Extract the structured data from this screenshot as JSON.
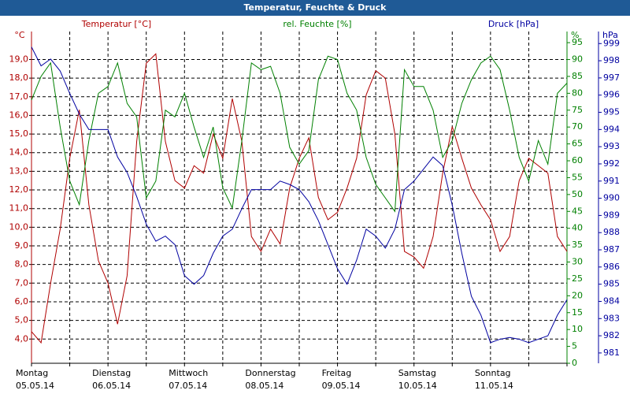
{
  "chart_data": {
    "type": "line",
    "title": "Temperatur, Feuchte & Druck",
    "x": [
      0,
      3,
      6,
      9,
      12,
      15,
      18,
      21,
      24,
      27,
      30,
      33,
      36,
      39,
      42,
      45,
      48,
      51,
      54,
      57,
      60,
      63,
      66,
      69,
      72,
      75,
      78,
      81,
      84,
      87,
      90,
      93,
      96,
      99,
      102,
      105,
      108,
      111,
      114,
      117,
      120,
      123,
      126,
      129,
      132,
      135,
      138,
      141,
      144,
      147,
      150,
      153,
      156,
      159,
      162,
      165,
      168
    ],
    "xlim": [
      0,
      168
    ],
    "xticks": [
      {
        "value": 0,
        "label": "Montag",
        "sublabel": "05.05.14"
      },
      12,
      {
        "value": 24,
        "label": "Dienstag",
        "sublabel": "06.05.14"
      },
      36,
      {
        "value": 48,
        "label": "Mittwoch",
        "sublabel": "07.05.14"
      },
      60,
      {
        "value": 72,
        "label": "Donnerstag",
        "sublabel": "08.05.14"
      },
      84,
      {
        "value": 96,
        "label": "Freitag",
        "sublabel": "09.05.14"
      },
      108,
      {
        "value": 120,
        "label": "Samstag",
        "sublabel": "10.05.14"
      },
      132,
      {
        "value": 144,
        "label": "Sonntag",
        "sublabel": "11.05.14"
      },
      156,
      168
    ],
    "ylabel": "°C",
    "ylim": [
      2.7,
      20.5
    ],
    "yticks": [
      {
        "value": 4,
        "label": "4,0"
      },
      {
        "value": 5,
        "label": "5,0"
      },
      {
        "value": 6,
        "label": "6,0"
      },
      {
        "value": 7,
        "label": "7,0"
      },
      {
        "value": 8,
        "label": "8,0"
      },
      {
        "value": 9,
        "label": "9,0"
      },
      {
        "value": 10,
        "label": "10,0"
      },
      {
        "value": 11,
        "label": "11,0"
      },
      {
        "value": 12,
        "label": "12,0"
      },
      {
        "value": 13,
        "label": "13,0"
      },
      {
        "value": 14,
        "label": "14,0"
      },
      {
        "value": 15,
        "label": "15,0"
      },
      {
        "value": 16,
        "label": "16,0"
      },
      {
        "value": 17,
        "label": "17,0"
      },
      {
        "value": 18,
        "label": "18,0"
      },
      {
        "value": 19,
        "label": "19,0"
      }
    ],
    "y2label": "%",
    "y2lim": [
      0,
      98.3
    ],
    "y2ticks": [
      0,
      5,
      10,
      15,
      20,
      25,
      30,
      35,
      40,
      45,
      50,
      55,
      60,
      65,
      70,
      75,
      80,
      85,
      90,
      95
    ],
    "y3label": "hPa",
    "y3lim": [
      980.4,
      999.7
    ],
    "y3ticks": [
      981,
      982,
      983,
      984,
      985,
      986,
      987,
      988,
      989,
      990,
      991,
      992,
      993,
      994,
      995,
      996,
      997,
      998,
      999
    ],
    "grid": true,
    "series": [
      {
        "name": "Temperatur [°C]",
        "color": "#b00000",
        "axis": "y",
        "values": [
          4.4,
          3.8,
          7.0,
          9.9,
          13.7,
          16.3,
          11.2,
          8.2,
          7.0,
          4.8,
          7.4,
          14.6,
          18.8,
          19.3,
          14.6,
          12.5,
          12.1,
          13.3,
          12.9,
          15.0,
          13.7,
          16.9,
          14.6,
          9.5,
          8.7,
          9.9,
          9.1,
          12.1,
          13.7,
          14.8,
          11.6,
          10.4,
          10.8,
          12.1,
          13.7,
          17.1,
          18.4,
          18.0,
          15.0,
          8.7,
          8.4,
          7.8,
          9.5,
          12.9,
          15.4,
          13.7,
          12.1,
          11.2,
          10.4,
          8.7,
          9.5,
          12.5,
          13.7,
          13.3,
          12.9,
          9.5,
          8.7
        ]
      },
      {
        "name": "rel. Feuchte [%]",
        "color": "#008000",
        "axis": "y2",
        "values": [
          78,
          85,
          89,
          70,
          54,
          47,
          66,
          80,
          82,
          89,
          77,
          73,
          49,
          54,
          75,
          73,
          80,
          70,
          61,
          70,
          52,
          46,
          66,
          89,
          87,
          88,
          80,
          64,
          59,
          63,
          84,
          91,
          90,
          80,
          75,
          61,
          53,
          49,
          45,
          87,
          82,
          82,
          75,
          61,
          66,
          77,
          84,
          89,
          91,
          87,
          75,
          61,
          54,
          66,
          59,
          80,
          83
        ]
      },
      {
        "name": "Druck [hPa]",
        "color": "#0000a0",
        "axis": "y3",
        "values": [
          998.8,
          997.7,
          998.1,
          997.4,
          996.1,
          994.9,
          994.0,
          994.0,
          994.0,
          992.4,
          991.5,
          990.1,
          988.5,
          987.5,
          987.8,
          987.3,
          985.5,
          985.0,
          985.5,
          986.8,
          987.8,
          988.2,
          989.4,
          990.5,
          990.5,
          990.5,
          991.0,
          990.8,
          990.5,
          989.8,
          988.7,
          987.3,
          985.9,
          985.0,
          986.4,
          988.2,
          987.8,
          987.1,
          988.2,
          990.5,
          991.0,
          991.7,
          992.4,
          991.9,
          989.6,
          986.8,
          984.3,
          983.2,
          981.6,
          981.8,
          981.9,
          981.8,
          981.6,
          981.8,
          982.0,
          983.2,
          984.1
        ]
      }
    ]
  }
}
